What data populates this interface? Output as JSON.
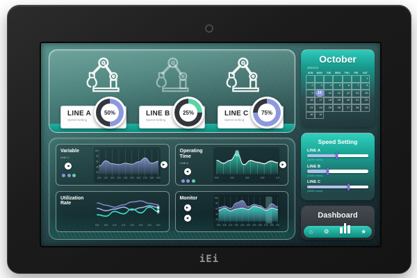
{
  "device": {
    "brand_logo": "iEi"
  },
  "icons": {
    "arrow_left": "◀",
    "arrow_right": "▶",
    "home": "⌂",
    "gear": "⚙",
    "star": "★"
  },
  "colors": {
    "accent_teal": "#1db2a1",
    "chart_purple": "#8e99dd",
    "chart_teal": "#2fd9bc",
    "ring_base": "#33373c",
    "highlight_purple": "#8b96dd"
  },
  "lines_overview": {
    "cards": [
      {
        "label": "LINE A",
        "sublabel": "Speed Setting",
        "percent": 50,
        "percent_label": "50%",
        "color": "#8e99dd",
        "dimmed": false
      },
      {
        "label": "LINE B",
        "sublabel": "Speed Setting",
        "percent": 25,
        "percent_label": "25%",
        "color": "#5bd3a4",
        "dimmed": true
      },
      {
        "label": "LINE C",
        "sublabel": "Speed Setting",
        "percent": 75,
        "percent_label": "75%",
        "color": "#8e99dd",
        "dimmed": false
      }
    ]
  },
  "chart_data": [
    {
      "id": "variable",
      "type": "area",
      "title": "Variable",
      "subtitle": "LINE C",
      "grid": true,
      "legend_dots": [
        "#8b96dd",
        "#8b96dd",
        "#5bd3a4"
      ],
      "series": [
        {
          "color": "#8e99dd",
          "stroke": "#ccd3f7",
          "stroke_w": 0.6,
          "values": [
            34,
            56,
            44,
            40,
            46,
            42,
            52,
            68,
            46,
            54
          ]
        }
      ],
      "y_ticks": [
        "100",
        "80",
        "60",
        "40",
        "20"
      ],
      "x_ticks": [
        "10:00",
        "11:00",
        "12:00",
        "13:00",
        "14:00",
        "15:00",
        "16:00",
        "17:00",
        "18:00",
        "19:00"
      ]
    },
    {
      "id": "operating",
      "type": "area",
      "title": "Operating Time",
      "subtitle": "LINE A",
      "drops": true,
      "highlight_index": 3,
      "legend_dots": [
        "#8b96dd",
        "#8b96dd",
        "#5bd3a4"
      ],
      "series": [
        {
          "color": "#2fd9bc",
          "stroke": "#ffffff",
          "stroke_w": 0.9,
          "values": [
            58,
            46,
            58,
            88,
            40,
            57,
            50,
            44,
            55,
            48
          ]
        }
      ],
      "x_ticks": [
        "09:00",
        "12:00",
        "15:00",
        "18:00",
        "21:00"
      ]
    },
    {
      "id": "utilization",
      "type": "lines",
      "title": "Utilization Rate",
      "subtitle": "",
      "series": [
        {
          "color": "#7d88c8",
          "stroke_w": 1.1,
          "values": [
            78,
            68,
            60,
            70,
            82,
            86,
            76,
            70
          ]
        },
        {
          "color": "#a9b2ec",
          "stroke_w": 1.1,
          "glow": true,
          "values": [
            55,
            45,
            52,
            60,
            48,
            58,
            66,
            58
          ]
        },
        {
          "color": "#35e2c4",
          "stroke_w": 1.2,
          "glow": true,
          "values": [
            28,
            22,
            42,
            32,
            52,
            36,
            60,
            42
          ]
        }
      ],
      "x_ticks": [
        "09:00",
        "10:00",
        "11:00",
        "12:00",
        "13:00",
        "14:00",
        "15:00",
        "16:00"
      ]
    },
    {
      "id": "monitor",
      "type": "stacked",
      "title": "Monitor",
      "subtitle": "",
      "grid": true,
      "highlight_index": 8,
      "series": [
        {
          "color": "#7d88c8",
          "stroke": "#b9c1ee",
          "stroke_w": 0.5,
          "values": [
            58,
            64,
            55,
            78,
            88,
            62,
            72,
            66,
            52,
            74,
            62
          ]
        },
        {
          "color": "#2fd9bc",
          "stroke": "#e8fffb",
          "stroke_w": 0.6,
          "values": [
            46,
            56,
            44,
            52,
            56,
            50,
            64,
            58,
            46,
            56,
            50
          ]
        }
      ],
      "y_ticks": [
        "100",
        "80",
        "60",
        "40",
        "20"
      ],
      "x_ticks": [
        "09:00",
        "10:00",
        "11:00",
        "12:00",
        "13:00",
        "14:00",
        "15:00",
        "16:00",
        "17:00",
        "18:00",
        "19:00"
      ]
    }
  ],
  "sidebar": {
    "calendar": {
      "title": "October",
      "subtitle": "2022/10",
      "day_headers": [
        "SUN",
        "MON",
        "TUE",
        "WED",
        "THU",
        "FRI",
        "SAT"
      ],
      "weeks": [
        [
          "",
          "",
          "",
          "",
          "",
          "",
          "1"
        ],
        [
          "2",
          "3",
          "4",
          "5",
          "6",
          "7",
          "8"
        ],
        [
          "9",
          "10",
          "11",
          "12",
          "13",
          "14",
          "15"
        ],
        [
          "16",
          "17",
          "18",
          "19",
          "20",
          "21",
          "22"
        ],
        [
          "23",
          "24",
          "25",
          "26",
          "27",
          "28",
          "29"
        ],
        [
          "30",
          "31",
          "",
          "",
          "",
          "",
          ""
        ]
      ],
      "highlight_day": "10",
      "highlight_color": "#8b96dd"
    },
    "speed_setting": {
      "title": "Speed Setting",
      "sliders": [
        {
          "label": "LINE A",
          "value_label": "(3000 mm/s)",
          "percent": 48
        },
        {
          "label": "LINE B",
          "value_label": "(1500 mm/s)",
          "percent": 33
        },
        {
          "label": "LINE C",
          "value_label": "(4500 mm/s)",
          "percent": 68
        }
      ]
    },
    "dashboard": {
      "title": "Dashboard"
    }
  }
}
